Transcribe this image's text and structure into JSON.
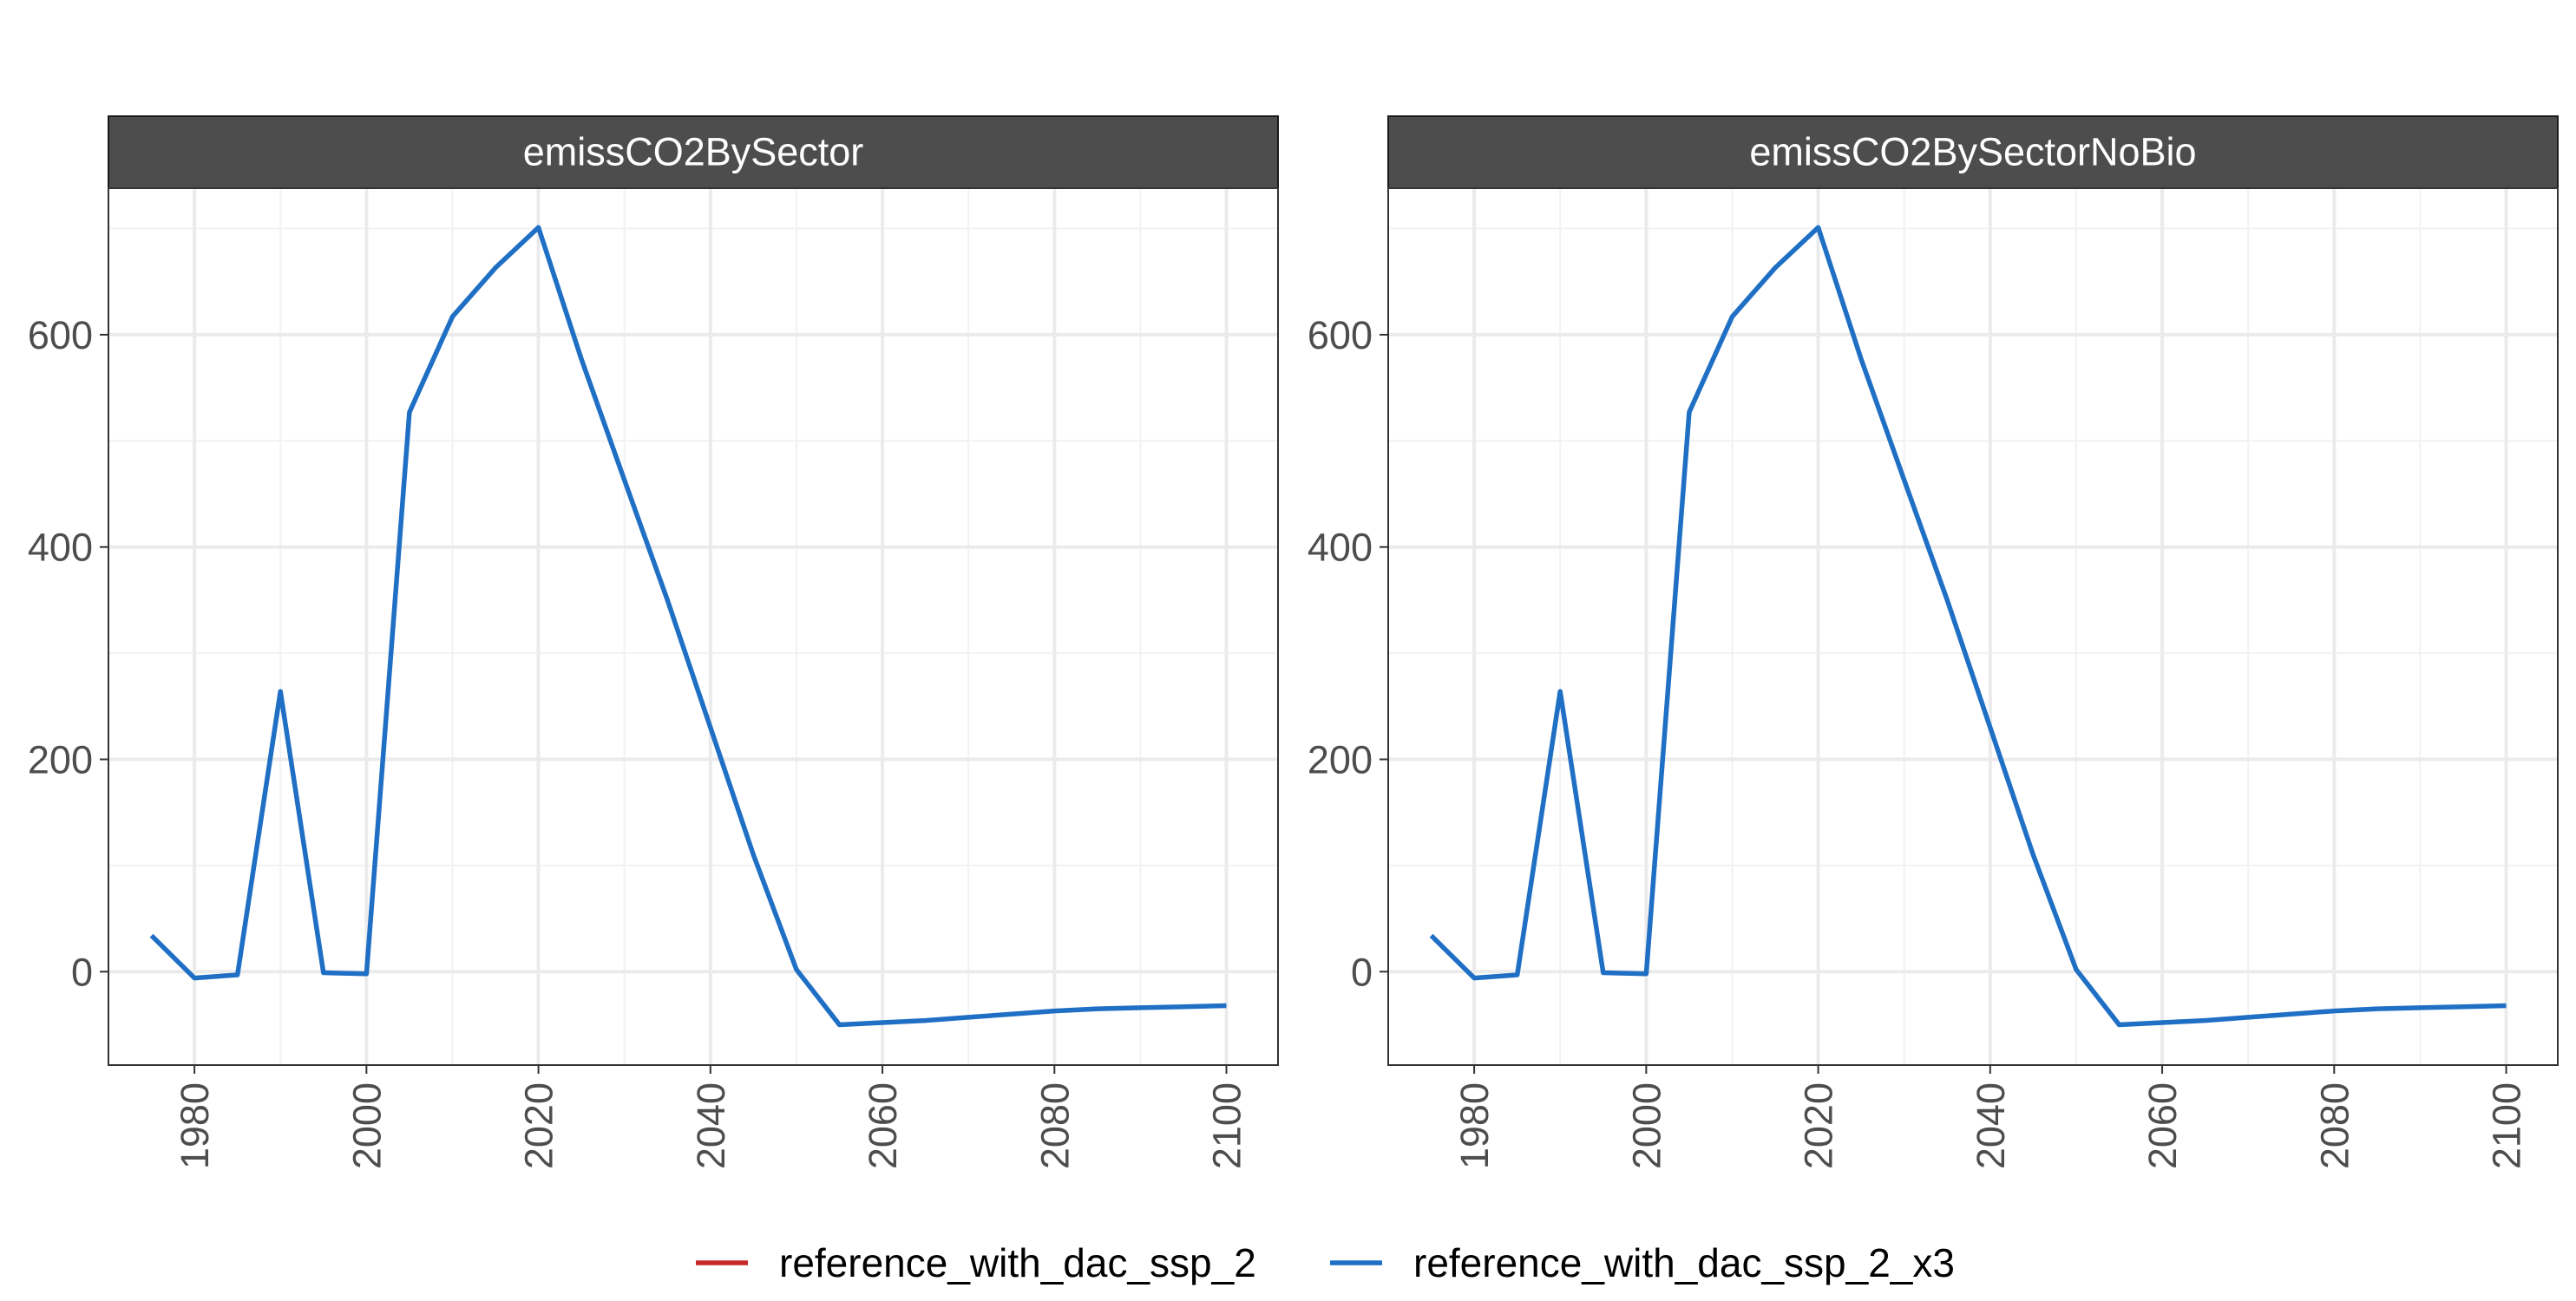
{
  "legend": {
    "entries": [
      {
        "label": "reference_with_dac_ssp_2",
        "color": "#C62828"
      },
      {
        "label": "reference_with_dac_ssp_2_x3",
        "color": "#1F6FC4"
      }
    ]
  },
  "chart_data": [
    {
      "type": "line",
      "title": "emissCO2BySector",
      "x_ticks": [
        1980,
        2000,
        2020,
        2040,
        2060,
        2080,
        2100
      ],
      "y_ticks": [
        0,
        200,
        400,
        600
      ],
      "xlim": [
        1970,
        2106
      ],
      "ylim": [
        -88,
        738
      ],
      "grid": true,
      "legend_position": "bottom",
      "series": [
        {
          "name": "reference_with_dac_ssp_2",
          "color": "#C62828",
          "x": [],
          "y": []
        },
        {
          "name": "reference_with_dac_ssp_2_x3",
          "color": "#1F6FC4",
          "x": [
            1975,
            1980,
            1985,
            1990,
            1995,
            2000,
            2005,
            2010,
            2015,
            2020,
            2025,
            2030,
            2035,
            2040,
            2045,
            2050,
            2055,
            2060,
            2065,
            2070,
            2075,
            2080,
            2085,
            2090,
            2095,
            2100
          ],
          "y": [
            34,
            -6,
            -3,
            264,
            -1,
            -2,
            527,
            617,
            663,
            701,
            577,
            463,
            350,
            230,
            110,
            2,
            -50,
            -48,
            -46,
            -43,
            -40,
            -37,
            -35,
            -34,
            -33,
            -32
          ]
        }
      ]
    },
    {
      "type": "line",
      "title": "emissCO2BySectorNoBio",
      "x_ticks": [
        1980,
        2000,
        2020,
        2040,
        2060,
        2080,
        2100
      ],
      "y_ticks": [
        0,
        200,
        400,
        600
      ],
      "xlim": [
        1970,
        2106
      ],
      "ylim": [
        -88,
        738
      ],
      "grid": true,
      "legend_position": "bottom",
      "series": [
        {
          "name": "reference_with_dac_ssp_2",
          "color": "#C62828",
          "x": [],
          "y": []
        },
        {
          "name": "reference_with_dac_ssp_2_x3",
          "color": "#1F6FC4",
          "x": [
            1975,
            1980,
            1985,
            1990,
            1995,
            2000,
            2005,
            2010,
            2015,
            2020,
            2025,
            2030,
            2035,
            2040,
            2045,
            2050,
            2055,
            2060,
            2065,
            2070,
            2075,
            2080,
            2085,
            2090,
            2095,
            2100
          ],
          "y": [
            34,
            -6,
            -3,
            264,
            -1,
            -2,
            527,
            617,
            663,
            701,
            577,
            463,
            350,
            230,
            110,
            2,
            -50,
            -48,
            -46,
            -43,
            -40,
            -37,
            -35,
            -34,
            -33,
            -32
          ]
        }
      ]
    }
  ]
}
